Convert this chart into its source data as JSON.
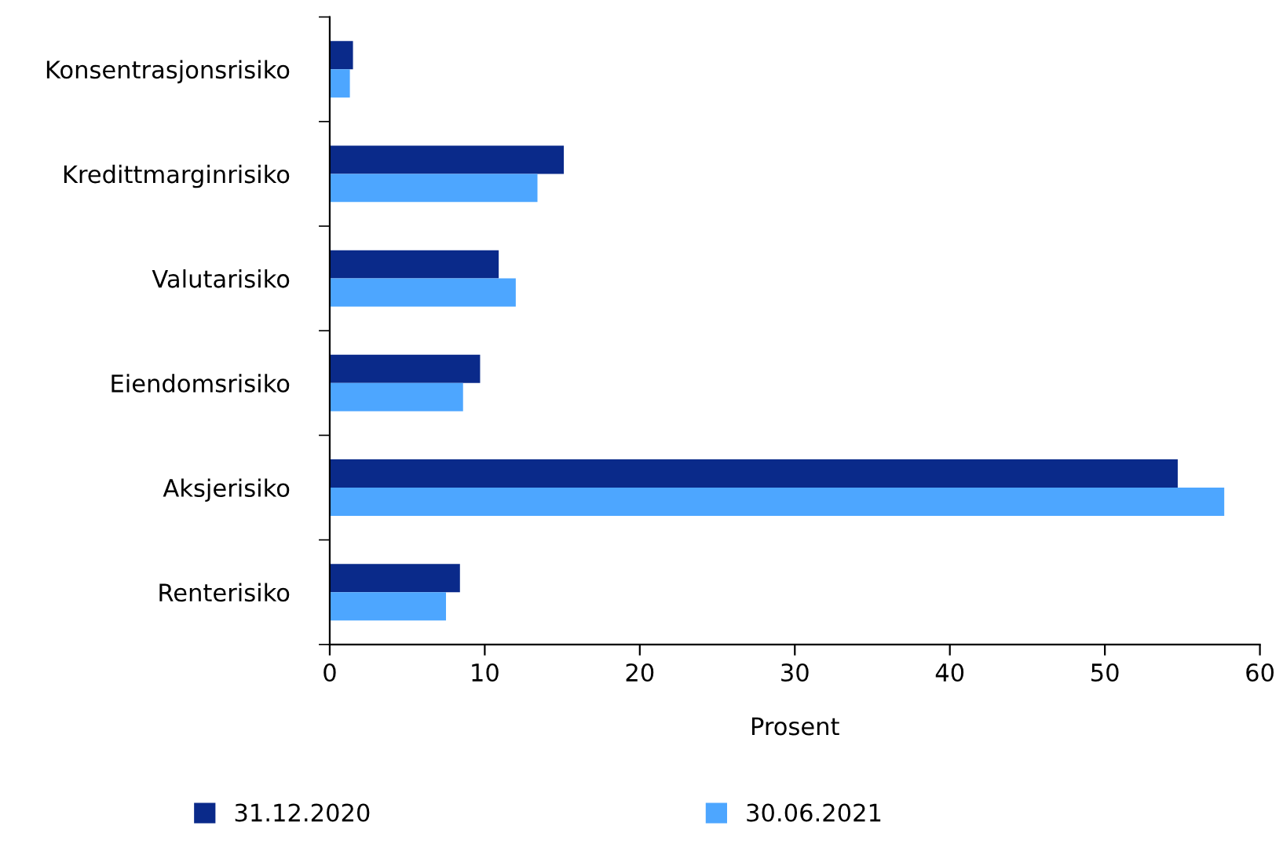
{
  "chart_data": {
    "type": "bar",
    "orientation": "horizontal",
    "xlabel": "Prosent",
    "categories": [
      "Konsentrasjonsrisiko",
      "Kredittmarginrisiko",
      "Valutarisiko",
      "Eiendomsrisiko",
      "Aksjerisiko",
      "Renterisiko"
    ],
    "series": [
      {
        "name": "31.12.2020",
        "color": "#0a2a8a",
        "values": [
          1.5,
          15.1,
          10.9,
          9.7,
          54.7,
          8.4
        ]
      },
      {
        "name": "30.06.2021",
        "color": "#4da6ff",
        "values": [
          1.3,
          13.4,
          12.0,
          8.6,
          57.7,
          7.5
        ]
      }
    ],
    "xlim": [
      0,
      60
    ],
    "xticks": [
      0,
      10,
      20,
      30,
      40,
      50,
      60
    ],
    "grid": false,
    "legend": "bottom"
  }
}
